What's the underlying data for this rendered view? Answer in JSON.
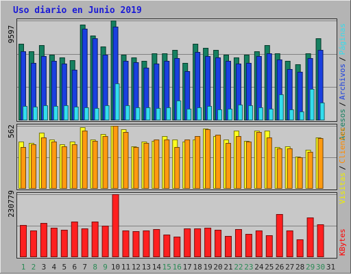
{
  "chart_data": {
    "type": "bar",
    "title": "Uso diario en Junio 2019",
    "categories": [
      "1",
      "2",
      "3",
      "4",
      "5",
      "6",
      "7",
      "8",
      "9",
      "10",
      "11",
      "12",
      "13",
      "14",
      "15",
      "16",
      "17",
      "18",
      "19",
      "20",
      "21",
      "22",
      "23",
      "24",
      "25",
      "26",
      "27",
      "28",
      "29",
      "30",
      "31"
    ],
    "weekend_days": [
      "1",
      "2",
      "8",
      "9",
      "15",
      "16",
      "22",
      "23",
      "29",
      "30"
    ],
    "panels": [
      {
        "name": "top",
        "ymax_label": "9597",
        "ymax": 9597,
        "legend": [
          {
            "text": "Páginas",
            "color": "#33ddee"
          },
          {
            "text": "Archivos",
            "color": "#1a40e0"
          },
          {
            "text": "Accesos",
            "color": "#158060"
          }
        ],
        "series": [
          {
            "name": "Accesos",
            "color": "#158060",
            "values": [
              7380,
              6660,
              7200,
              6310,
              6060,
              5800,
              9200,
              8160,
              7090,
              9597,
              6310,
              6060,
              5700,
              6430,
              6430,
              6790,
              5520,
              7380,
              6960,
              6790,
              6310,
              6060,
              6310,
              6660,
              7200,
              6430,
              5700,
              5360,
              6430,
              7920,
              0
            ]
          },
          {
            "name": "Archivos",
            "color": "#1a40e0",
            "values": [
              6660,
              5520,
              6190,
              5700,
              5450,
              4880,
              8800,
              7920,
              6310,
              9000,
              5700,
              5570,
              5070,
              5470,
              5700,
              5950,
              4710,
              6550,
              6190,
              6060,
              5700,
              5450,
              5520,
              6190,
              6430,
              5830,
              4950,
              4640,
              5950,
              6790,
              0
            ]
          },
          {
            "name": "Páginas",
            "color": "#33ddee",
            "values": [
              1360,
              1290,
              1470,
              1360,
              1430,
              1290,
              1250,
              1200,
              1470,
              3570,
              1470,
              1250,
              1250,
              1200,
              1250,
              1890,
              1110,
              1250,
              1360,
              1070,
              1110,
              1520,
              1430,
              1250,
              1110,
              2500,
              1070,
              830,
              3050,
              1700,
              0
            ]
          }
        ]
      },
      {
        "name": "mid",
        "ymax_label": "562",
        "ymax": 562,
        "legend": [
          {
            "text": "Clientes",
            "color": "#ff8c00"
          },
          {
            "text": "Visitas",
            "color": "#eeee00"
          }
        ],
        "series": [
          {
            "name": "Visitas",
            "color": "#ffff20",
            "values": [
              420,
              410,
              500,
              440,
              400,
              420,
              550,
              440,
              490,
              560,
              530,
              380,
              420,
              430,
              470,
              440,
              420,
              440,
              540,
              470,
              440,
              520,
              430,
              520,
              520,
              370,
              380,
              290,
              350,
              460,
              0
            ]
          },
          {
            "name": "Clientes",
            "color": "#ff9a10",
            "values": [
              370,
              400,
              460,
              420,
              380,
              400,
              520,
              430,
              470,
              560,
              510,
              370,
              410,
              440,
              440,
              370,
              440,
              470,
              530,
              480,
              410,
              470,
              420,
              510,
              460,
              360,
              360,
              280,
              330,
              450,
              0
            ]
          }
        ]
      },
      {
        "name": "bottom",
        "ymax_label": "230779",
        "ymax": 230779,
        "legend": [
          {
            "text": "KBytes",
            "color": "#ff0000"
          }
        ],
        "series": [
          {
            "name": "KBytes",
            "color": "#ff2020",
            "values": [
              117000,
              99000,
              126000,
              108000,
              100000,
              130000,
              106000,
              130000,
              116000,
              230779,
              98000,
              96000,
              97000,
              104000,
              83000,
              76000,
              105000,
              105000,
              108000,
              100000,
              78000,
              102000,
              85000,
              98000,
              81000,
              158000,
              98000,
              64000,
              145000,
              120000,
              0
            ]
          }
        ]
      }
    ]
  }
}
